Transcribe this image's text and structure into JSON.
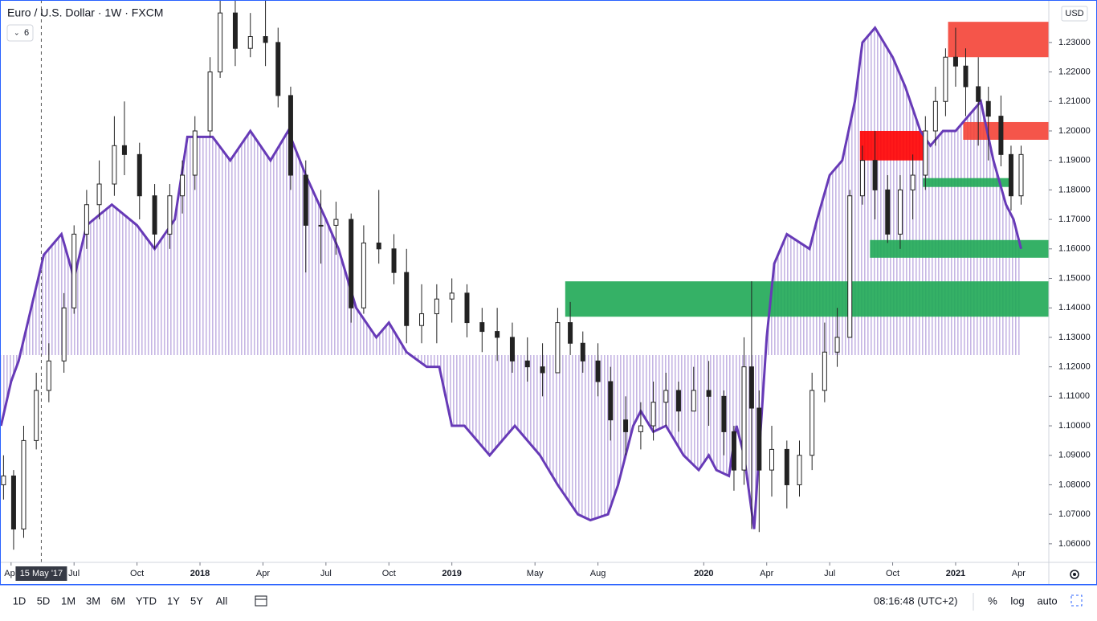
{
  "header": {
    "title": "Euro / U.S. Dollar · 1W · FXCM",
    "indicator_count": "6",
    "currency": "USD"
  },
  "toolbar": {
    "ranges": [
      "1D",
      "5D",
      "1M",
      "3M",
      "6M",
      "YTD",
      "1Y",
      "5Y",
      "All"
    ],
    "time": "08:16:48 (UTC+2)",
    "options": [
      "%",
      "log",
      "auto"
    ]
  },
  "chart_data": {
    "type": "candlestick",
    "xlim": [
      2017.206,
      2021.37
    ],
    "ylim": [
      1.0537,
      1.2444
    ],
    "xticks": [
      {
        "value": 2017.25,
        "label": "Apr"
      },
      {
        "value": 2017.5,
        "label": "Jul"
      },
      {
        "value": 2017.75,
        "label": "Oct"
      },
      {
        "value": 2018,
        "label": "2018"
      },
      {
        "value": 2018.25,
        "label": "Apr"
      },
      {
        "value": 2018.5,
        "label": "Jul"
      },
      {
        "value": 2018.75,
        "label": "Oct"
      },
      {
        "value": 2019,
        "label": "2019"
      },
      {
        "value": 2019.33,
        "label": "May"
      },
      {
        "value": 2019.58,
        "label": "Aug"
      },
      {
        "value": 2020,
        "label": "2020"
      },
      {
        "value": 2020.25,
        "label": "Apr"
      },
      {
        "value": 2020.5,
        "label": "Jul"
      },
      {
        "value": 2020.75,
        "label": "Oct"
      },
      {
        "value": 2021,
        "label": "2021"
      },
      {
        "value": 2021.25,
        "label": "Apr"
      }
    ],
    "yticks": [
      {
        "value": 1.23,
        "label": "1.23000"
      },
      {
        "value": 1.22,
        "label": "1.22000"
      },
      {
        "value": 1.21,
        "label": "1.21000"
      },
      {
        "value": 1.2,
        "label": "1.20000"
      },
      {
        "value": 1.19,
        "label": "1.19000"
      },
      {
        "value": 1.18,
        "label": "1.18000"
      },
      {
        "value": 1.17,
        "label": "1.17000"
      },
      {
        "value": 1.16,
        "label": "1.16000"
      },
      {
        "value": 1.15,
        "label": "1.15000"
      },
      {
        "value": 1.14,
        "label": "1.14000"
      },
      {
        "value": 1.13,
        "label": "1.13000"
      },
      {
        "value": 1.12,
        "label": "1.12000"
      },
      {
        "value": 1.11,
        "label": "1.11000"
      },
      {
        "value": 1.1,
        "label": "1.10000"
      },
      {
        "value": 1.09,
        "label": "1.09000"
      },
      {
        "value": 1.08,
        "label": "1.08000"
      },
      {
        "value": 1.07,
        "label": "1.07000"
      },
      {
        "value": 1.06,
        "label": "1.06000"
      }
    ],
    "crosshair": {
      "value": 2017.37,
      "label": "15 May '17"
    },
    "candles": {
      "up_color": "#ffffff",
      "down_color": "#222222",
      "x": [
        2017.22,
        2017.26,
        2017.3,
        2017.35,
        2017.4,
        2017.46,
        2017.5,
        2017.55,
        2017.6,
        2017.66,
        2017.7,
        2017.76,
        2017.82,
        2017.88,
        2017.93,
        2017.98,
        2018.04,
        2018.08,
        2018.14,
        2018.2,
        2018.26,
        2018.31,
        2018.36,
        2018.42,
        2018.48,
        2018.54,
        2018.6,
        2018.65,
        2018.71,
        2018.77,
        2018.82,
        2018.88,
        2018.94,
        2019.0,
        2019.06,
        2019.12,
        2019.18,
        2019.24,
        2019.3,
        2019.36,
        2019.42,
        2019.47,
        2019.52,
        2019.58,
        2019.63,
        2019.69,
        2019.75,
        2019.8,
        2019.85,
        2019.9,
        2019.96,
        2020.02,
        2020.08,
        2020.12,
        2020.16,
        2020.19,
        2020.22,
        2020.27,
        2020.33,
        2020.38,
        2020.43,
        2020.48,
        2020.53,
        2020.58,
        2020.63,
        2020.68,
        2020.73,
        2020.78,
        2020.83,
        2020.88,
        2020.92,
        2020.96,
        2021.0,
        2021.04,
        2021.09,
        2021.13,
        2021.18,
        2021.22,
        2021.26
      ],
      "open": [
        1.08,
        1.083,
        1.065,
        1.095,
        1.112,
        1.122,
        1.14,
        1.165,
        1.175,
        1.182,
        1.195,
        1.192,
        1.178,
        1.165,
        1.178,
        1.185,
        1.2,
        1.22,
        1.24,
        1.228,
        1.232,
        1.23,
        1.212,
        1.185,
        1.168,
        1.168,
        1.17,
        1.14,
        1.162,
        1.16,
        1.152,
        1.134,
        1.138,
        1.143,
        1.145,
        1.135,
        1.132,
        1.13,
        1.122,
        1.12,
        1.118,
        1.135,
        1.128,
        1.122,
        1.115,
        1.102,
        1.098,
        1.1,
        1.108,
        1.112,
        1.105,
        1.112,
        1.11,
        1.098,
        1.085,
        1.12,
        1.106,
        1.085,
        1.092,
        1.08,
        1.09,
        1.112,
        1.125,
        1.13,
        1.178,
        1.19,
        1.18,
        1.165,
        1.18,
        1.185,
        1.2,
        1.21,
        1.225,
        1.222,
        1.215,
        1.21,
        1.205,
        1.192,
        1.178
      ],
      "high": [
        1.09,
        1.085,
        1.1,
        1.118,
        1.128,
        1.145,
        1.168,
        1.18,
        1.19,
        1.205,
        1.21,
        1.196,
        1.182,
        1.182,
        1.19,
        1.205,
        1.225,
        1.245,
        1.245,
        1.24,
        1.245,
        1.235,
        1.215,
        1.19,
        1.18,
        1.176,
        1.172,
        1.168,
        1.18,
        1.165,
        1.16,
        1.148,
        1.148,
        1.15,
        1.148,
        1.14,
        1.14,
        1.135,
        1.13,
        1.128,
        1.14,
        1.142,
        1.132,
        1.128,
        1.12,
        1.11,
        1.108,
        1.115,
        1.118,
        1.115,
        1.12,
        1.122,
        1.112,
        1.1,
        1.13,
        1.149,
        1.112,
        1.1,
        1.095,
        1.095,
        1.118,
        1.135,
        1.14,
        1.18,
        1.195,
        1.2,
        1.185,
        1.185,
        1.192,
        1.205,
        1.215,
        1.228,
        1.235,
        1.228,
        1.225,
        1.215,
        1.212,
        1.195,
        1.195
      ],
      "low": [
        1.075,
        1.058,
        1.062,
        1.092,
        1.108,
        1.118,
        1.138,
        1.16,
        1.17,
        1.178,
        1.185,
        1.17,
        1.16,
        1.16,
        1.172,
        1.18,
        1.198,
        1.218,
        1.222,
        1.225,
        1.222,
        1.208,
        1.18,
        1.152,
        1.155,
        1.158,
        1.135,
        1.138,
        1.155,
        1.148,
        1.128,
        1.128,
        1.128,
        1.135,
        1.13,
        1.125,
        1.122,
        1.118,
        1.115,
        1.11,
        1.118,
        1.124,
        1.118,
        1.11,
        1.095,
        1.09,
        1.092,
        1.095,
        1.1,
        1.098,
        1.105,
        1.1,
        1.09,
        1.078,
        1.08,
        1.065,
        1.064,
        1.076,
        1.072,
        1.076,
        1.085,
        1.108,
        1.12,
        1.13,
        1.175,
        1.17,
        1.162,
        1.16,
        1.17,
        1.18,
        1.195,
        1.205,
        1.215,
        1.205,
        1.195,
        1.19,
        1.188,
        1.173,
        1.175
      ],
      "close": [
        1.083,
        1.065,
        1.095,
        1.112,
        1.122,
        1.14,
        1.165,
        1.175,
        1.182,
        1.195,
        1.192,
        1.178,
        1.165,
        1.178,
        1.185,
        1.2,
        1.22,
        1.24,
        1.228,
        1.232,
        1.23,
        1.212,
        1.185,
        1.168,
        1.168,
        1.17,
        1.14,
        1.162,
        1.16,
        1.152,
        1.134,
        1.138,
        1.143,
        1.145,
        1.135,
        1.132,
        1.13,
        1.122,
        1.12,
        1.118,
        1.135,
        1.128,
        1.122,
        1.115,
        1.102,
        1.098,
        1.1,
        1.108,
        1.112,
        1.105,
        1.112,
        1.11,
        1.098,
        1.085,
        1.12,
        1.106,
        1.085,
        1.092,
        1.08,
        1.09,
        1.112,
        1.125,
        1.13,
        1.178,
        1.19,
        1.18,
        1.165,
        1.18,
        1.185,
        1.2,
        1.21,
        1.225,
        1.222,
        1.215,
        1.21,
        1.205,
        1.192,
        1.178,
        1.192
      ]
    },
    "line": {
      "color": "#673ab7",
      "fill_color": "#b39ddb",
      "fill_base": 1.124,
      "x": [
        2017.21,
        2017.25,
        2017.28,
        2017.33,
        2017.38,
        2017.45,
        2017.5,
        2017.55,
        2017.65,
        2017.75,
        2017.82,
        2017.9,
        2017.95,
        2018.05,
        2018.12,
        2018.2,
        2018.28,
        2018.35,
        2018.42,
        2018.5,
        2018.55,
        2018.62,
        2018.7,
        2018.75,
        2018.82,
        2018.9,
        2018.95,
        2019.0,
        2019.05,
        2019.1,
        2019.15,
        2019.25,
        2019.3,
        2019.35,
        2019.42,
        2019.5,
        2019.55,
        2019.62,
        2019.66,
        2019.72,
        2019.75,
        2019.8,
        2019.85,
        2019.92,
        2019.98,
        2020.02,
        2020.05,
        2020.1,
        2020.13,
        2020.16,
        2020.2,
        2020.25,
        2020.28,
        2020.33,
        2020.42,
        2020.45,
        2020.5,
        2020.55,
        2020.6,
        2020.63,
        2020.68,
        2020.75,
        2020.8,
        2020.86,
        2020.9,
        2020.95,
        2021.0,
        2021.05,
        2021.1,
        2021.15,
        2021.2,
        2021.23,
        2021.26
      ],
      "values": [
        1.1,
        1.115,
        1.122,
        1.14,
        1.158,
        1.165,
        1.15,
        1.168,
        1.175,
        1.168,
        1.16,
        1.17,
        1.198,
        1.198,
        1.19,
        1.2,
        1.19,
        1.2,
        1.185,
        1.17,
        1.16,
        1.14,
        1.13,
        1.135,
        1.125,
        1.12,
        1.12,
        1.1,
        1.1,
        1.095,
        1.09,
        1.1,
        1.095,
        1.09,
        1.08,
        1.07,
        1.068,
        1.07,
        1.08,
        1.1,
        1.105,
        1.098,
        1.1,
        1.09,
        1.085,
        1.09,
        1.085,
        1.083,
        1.1,
        1.09,
        1.065,
        1.13,
        1.155,
        1.165,
        1.16,
        1.17,
        1.185,
        1.19,
        1.21,
        1.23,
        1.235,
        1.225,
        1.215,
        1.2,
        1.195,
        1.2,
        1.2,
        1.205,
        1.21,
        1.19,
        1.175,
        1.17,
        1.16
      ]
    },
    "zones": [
      {
        "color": "#f44336",
        "x": [
          2020.97,
          2021.37
        ],
        "y": [
          1.225,
          1.237
        ]
      },
      {
        "color": "#f44336",
        "x": [
          2021.03,
          2021.37
        ],
        "y": [
          1.197,
          1.203
        ]
      },
      {
        "color": "#ff0000",
        "x": [
          2020.62,
          2020.87
        ],
        "y": [
          1.19,
          1.2
        ]
      },
      {
        "color": "#1fa855",
        "x": [
          2020.87,
          2021.22
        ],
        "y": [
          1.181,
          1.184
        ]
      },
      {
        "color": "#1fa855",
        "x": [
          2020.66,
          2021.37
        ],
        "y": [
          1.157,
          1.163
        ]
      },
      {
        "color": "#1fa855",
        "x": [
          2019.45,
          2021.37
        ],
        "y": [
          1.137,
          1.149
        ]
      }
    ]
  }
}
